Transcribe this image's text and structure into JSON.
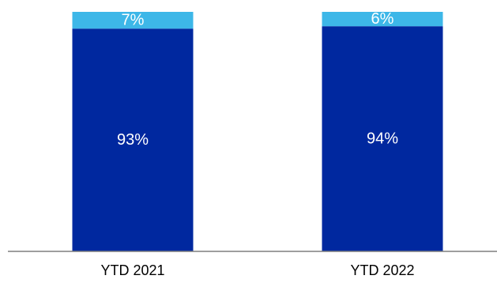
{
  "chart_data": {
    "type": "bar",
    "stacked": true,
    "percent": true,
    "categories": [
      "YTD 2021",
      "YTD 2022"
    ],
    "series": [
      {
        "values": [
          93,
          94
        ],
        "labels": [
          "93%",
          "94%"
        ],
        "color": "#00289F"
      },
      {
        "values": [
          7,
          6
        ],
        "labels": [
          "7%",
          "6%"
        ],
        "color": "#3DB7E8"
      }
    ],
    "ylim": [
      0,
      100
    ],
    "grid": false,
    "legend": "none",
    "axis_color": "#7F7F7F"
  }
}
